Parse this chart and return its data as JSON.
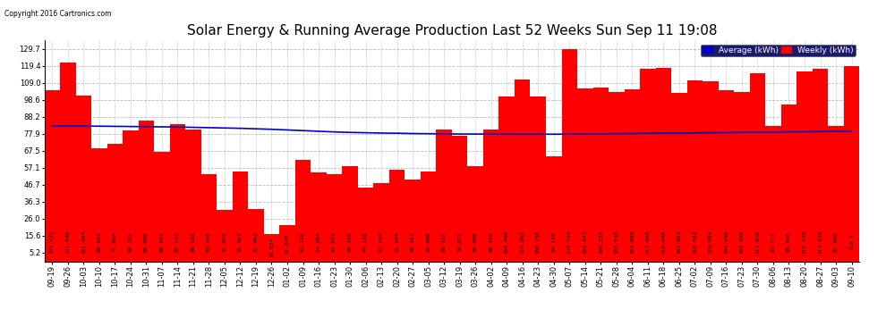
{
  "title": "Solar Energy & Running Average Production Last 52 Weeks Sun Sep 11 19:08",
  "copyright": "Copyright 2016 Cartronics.com",
  "bar_color": "#ff0000",
  "line_color": "#0000cc",
  "background_color": "#ffffff",
  "plot_bg_color": "#ffffff",
  "grid_color": "#bbbbbb",
  "legend_avg_bg": "#0000cc",
  "legend_weekly_bg": "#ff0000",
  "x_labels": [
    "09-19",
    "09-26",
    "10-03",
    "10-10",
    "10-17",
    "10-24",
    "10-31",
    "11-07",
    "11-14",
    "11-21",
    "11-28",
    "12-05",
    "12-12",
    "12-19",
    "12-26",
    "01-02",
    "01-09",
    "01-16",
    "01-23",
    "01-30",
    "02-06",
    "02-13",
    "02-20",
    "02-27",
    "03-05",
    "03-12",
    "03-19",
    "03-26",
    "04-02",
    "04-09",
    "04-16",
    "04-23",
    "04-30",
    "05-07",
    "05-14",
    "05-21",
    "05-28",
    "06-04",
    "06-11",
    "06-18",
    "06-25",
    "07-02",
    "07-09",
    "07-16",
    "07-23",
    "07-30",
    "08-06",
    "08-13",
    "08-20",
    "08-27",
    "09-03",
    "09-10"
  ],
  "bar_labels": [
    "104.432",
    "121.448",
    "101.094",
    "68.954",
    "71.994",
    "80.102",
    "86.000",
    "66.552",
    "83.522",
    "80.228",
    "53.310",
    "31.402",
    "55.062",
    "32.062",
    "16.834",
    "21.878",
    "62.120",
    "54.064",
    "53.072",
    "58.150",
    "45.136",
    "47.544",
    "55.844",
    "50.162",
    "55.008",
    "80.310",
    "76.872",
    "58.008",
    "80.310",
    "100.906",
    "110.905",
    "100.756",
    "64.118",
    "129.734",
    "105.442",
    "106.338",
    "103.558",
    "104.800",
    "117.668",
    "118.048",
    "102.902",
    "110.504",
    "110.094",
    "104.456",
    "103.506",
    "114.816",
    "82.772",
    "95.816",
    "115.720",
    "117.426",
    "82.606",
    "119.4"
  ],
  "avg_values": [
    82.5,
    82.6,
    82.55,
    82.5,
    82.4,
    82.3,
    82.2,
    82.1,
    82.0,
    81.8,
    81.6,
    81.4,
    81.2,
    80.9,
    80.6,
    80.2,
    79.8,
    79.4,
    79.0,
    78.7,
    78.5,
    78.3,
    78.2,
    78.0,
    77.9,
    77.8,
    77.7,
    77.7,
    77.65,
    77.6,
    77.6,
    77.6,
    77.6,
    77.65,
    77.7,
    77.8,
    77.9,
    78.0,
    78.1,
    78.2,
    78.3,
    78.4,
    78.5,
    78.6,
    78.7,
    78.8,
    78.9,
    79.0,
    79.1,
    79.2,
    79.3,
    79.4
  ],
  "ylim": [
    0,
    135
  ],
  "yticks": [
    5.2,
    15.6,
    26.0,
    36.3,
    46.7,
    57.1,
    67.5,
    77.9,
    88.2,
    98.6,
    109.0,
    119.4,
    129.7
  ],
  "title_fontsize": 11,
  "tick_fontsize": 6,
  "bar_label_fontsize": 4.5,
  "avg_label": "Average (kWh)",
  "weekly_label": "Weekly (kWh)"
}
